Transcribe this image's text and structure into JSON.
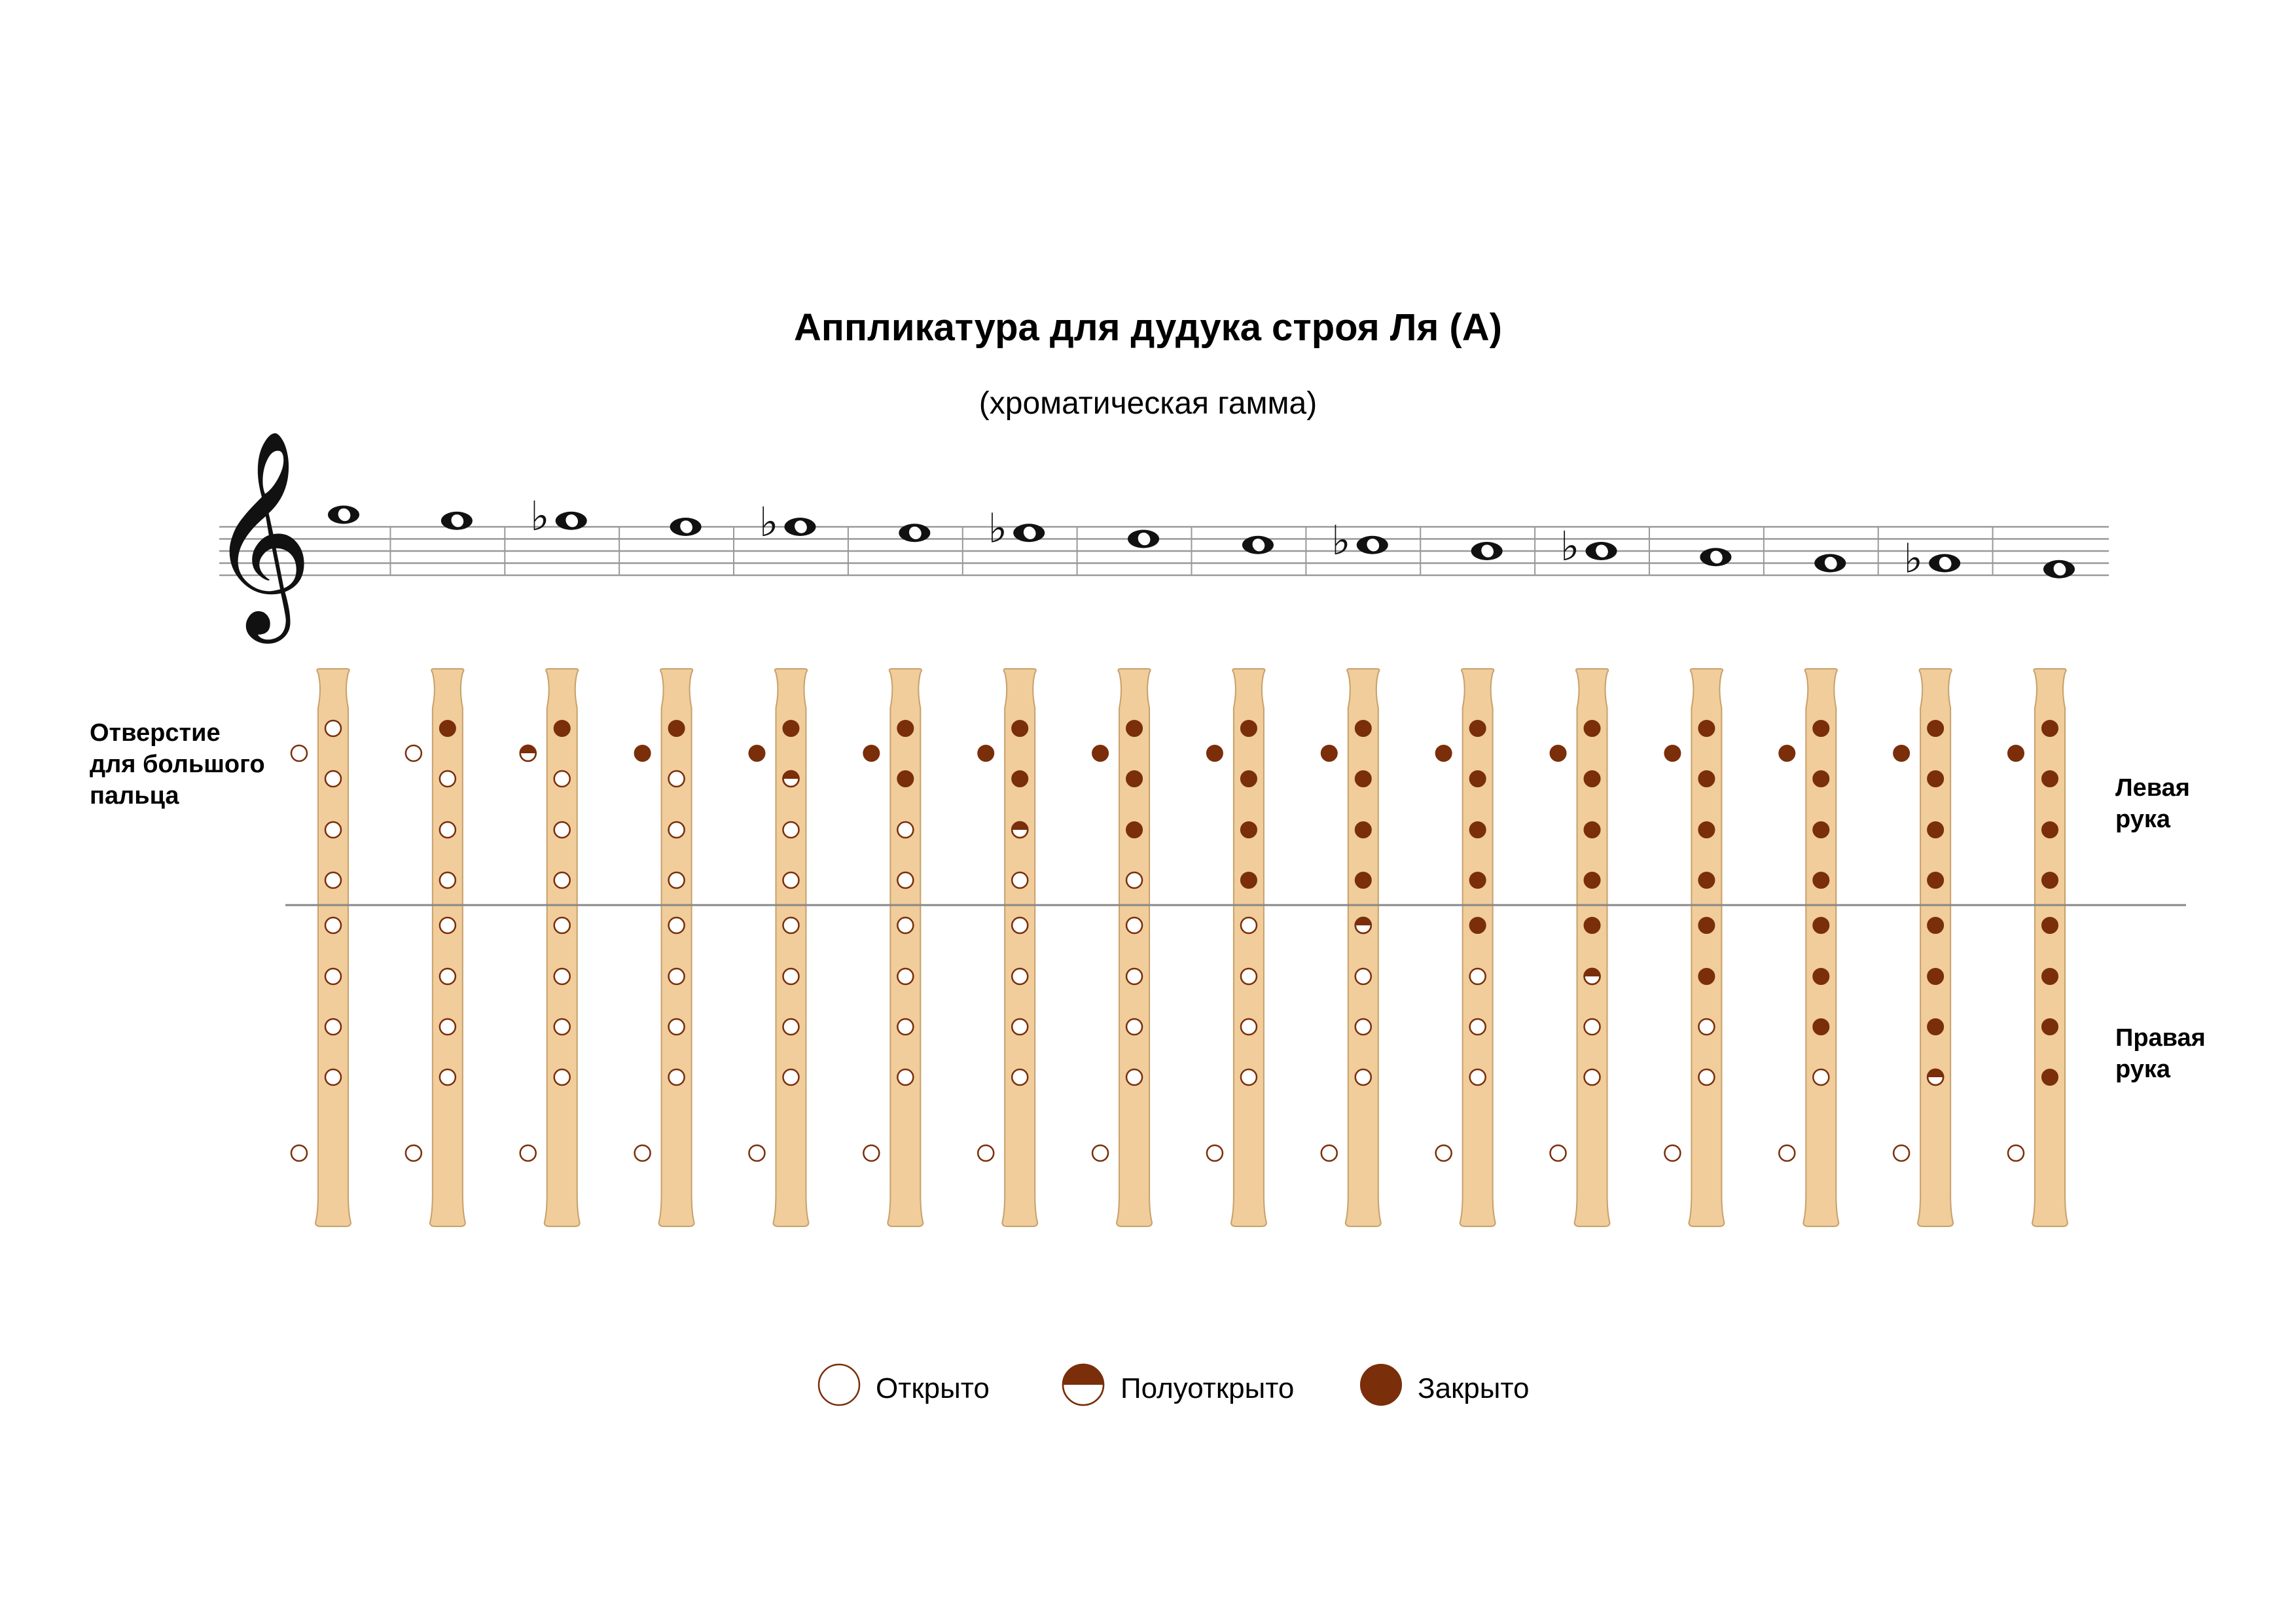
{
  "title": "Аппликатура для дудука строя Ля (A)",
  "subtitle": "(хроматическая гамма)",
  "labels": {
    "thumb": [
      "Отверстие",
      "для большого",
      "пальца"
    ],
    "left_hand": [
      "Левая",
      "рука"
    ],
    "right_hand": [
      "Правая",
      "рука"
    ]
  },
  "legend": [
    {
      "state": "open",
      "label": "Открыто"
    },
    {
      "state": "half",
      "label": "Полуоткрыто"
    },
    {
      "state": "closed",
      "label": "Закрыто"
    }
  ],
  "colors": {
    "closed": "#7a2e0a",
    "open": "#ffffff",
    "outline": "#7a2e0a",
    "body": "#f0cd9b",
    "body_edge": "#c8a06a",
    "staff": "#999999",
    "divider": "#888888"
  },
  "notes": [
    {
      "step": 12,
      "accidental": ""
    },
    {
      "step": 11,
      "accidental": ""
    },
    {
      "step": 11,
      "accidental": "flat"
    },
    {
      "step": 10,
      "accidental": ""
    },
    {
      "step": 10,
      "accidental": "flat"
    },
    {
      "step": 9,
      "accidental": ""
    },
    {
      "step": 9,
      "accidental": "flat"
    },
    {
      "step": 8,
      "accidental": ""
    },
    {
      "step": 7,
      "accidental": ""
    },
    {
      "step": 7,
      "accidental": "flat"
    },
    {
      "step": 6,
      "accidental": ""
    },
    {
      "step": 6,
      "accidental": "flat"
    },
    {
      "step": 5,
      "accidental": ""
    },
    {
      "step": 4,
      "accidental": ""
    },
    {
      "step": 4,
      "accidental": "flat"
    },
    {
      "step": 3,
      "accidental": ""
    }
  ],
  "fingerings": [
    {
      "thumb": "open",
      "holes": [
        "open",
        "open",
        "open",
        "open",
        "open",
        "open",
        "open",
        "open"
      ]
    },
    {
      "thumb": "open",
      "holes": [
        "closed",
        "open",
        "open",
        "open",
        "open",
        "open",
        "open",
        "open"
      ]
    },
    {
      "thumb": "half",
      "holes": [
        "closed",
        "open",
        "open",
        "open",
        "open",
        "open",
        "open",
        "open"
      ]
    },
    {
      "thumb": "closed",
      "holes": [
        "closed",
        "open",
        "open",
        "open",
        "open",
        "open",
        "open",
        "open"
      ]
    },
    {
      "thumb": "closed",
      "holes": [
        "closed",
        "half",
        "open",
        "open",
        "open",
        "open",
        "open",
        "open"
      ]
    },
    {
      "thumb": "closed",
      "holes": [
        "closed",
        "closed",
        "open",
        "open",
        "open",
        "open",
        "open",
        "open"
      ]
    },
    {
      "thumb": "closed",
      "holes": [
        "closed",
        "closed",
        "half",
        "open",
        "open",
        "open",
        "open",
        "open"
      ]
    },
    {
      "thumb": "closed",
      "holes": [
        "closed",
        "closed",
        "closed",
        "open",
        "open",
        "open",
        "open",
        "open"
      ]
    },
    {
      "thumb": "closed",
      "holes": [
        "closed",
        "closed",
        "closed",
        "closed",
        "open",
        "open",
        "open",
        "open"
      ]
    },
    {
      "thumb": "closed",
      "holes": [
        "closed",
        "closed",
        "closed",
        "closed",
        "half",
        "open",
        "open",
        "open"
      ]
    },
    {
      "thumb": "closed",
      "holes": [
        "closed",
        "closed",
        "closed",
        "closed",
        "closed",
        "open",
        "open",
        "open"
      ]
    },
    {
      "thumb": "closed",
      "holes": [
        "closed",
        "closed",
        "closed",
        "closed",
        "closed",
        "half",
        "open",
        "open"
      ]
    },
    {
      "thumb": "closed",
      "holes": [
        "closed",
        "closed",
        "closed",
        "closed",
        "closed",
        "closed",
        "open",
        "open"
      ]
    },
    {
      "thumb": "closed",
      "holes": [
        "closed",
        "closed",
        "closed",
        "closed",
        "closed",
        "closed",
        "closed",
        "open"
      ]
    },
    {
      "thumb": "closed",
      "holes": [
        "closed",
        "closed",
        "closed",
        "closed",
        "closed",
        "closed",
        "closed",
        "half"
      ]
    },
    {
      "thumb": "closed",
      "holes": [
        "closed",
        "closed",
        "closed",
        "closed",
        "closed",
        "closed",
        "closed",
        "closed"
      ]
    }
  ]
}
